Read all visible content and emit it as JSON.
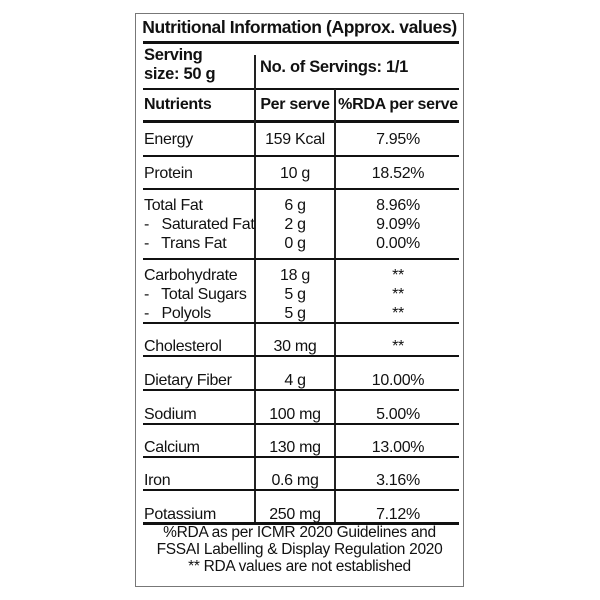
{
  "title": "Nutritional Information (Approx. values)",
  "serving_size": [
    "Serving",
    "size: 50 g"
  ],
  "servings": "No. of Servings: 1/1",
  "headers": [
    "Nutrients",
    "Per serve",
    "%RDA per serve"
  ],
  "rows": [
    {
      "name": "Energy",
      "per_serve": "159 Kcal",
      "rda": "7.95%"
    },
    {
      "name": "Protein",
      "per_serve": "10 g",
      "rda": "18.52%"
    },
    {
      "name": "Total Fat",
      "per_serve": "6 g",
      "rda": "8.96%"
    },
    {
      "name": "-   Saturated Fat",
      "per_serve": "2 g",
      "rda": "9.09%"
    },
    {
      "name": "-   Trans Fat",
      "per_serve": "0 g",
      "rda": "0.00%"
    },
    {
      "name": "Carbohydrate",
      "per_serve": "18 g",
      "rda": "**"
    },
    {
      "name": "-   Total Sugars",
      "per_serve": "5 g",
      "rda": "**"
    },
    {
      "name": "-   Polyols",
      "per_serve": "5 g",
      "rda": "**"
    },
    {
      "name": "Cholesterol",
      "per_serve": "30 mg",
      "rda": "**"
    },
    {
      "name": "Dietary Fiber",
      "per_serve": "4 g",
      "rda": "10.00%"
    },
    {
      "name": "Sodium",
      "per_serve": "100 mg",
      "rda": "5.00%"
    },
    {
      "name": "Calcium",
      "per_serve": "130 mg",
      "rda": "13.00%"
    },
    {
      "name": "Iron",
      "per_serve": "0.6 mg",
      "rda": "3.16%"
    },
    {
      "name": "Potassium",
      "per_serve": "250 mg",
      "rda": "7.12%"
    }
  ],
  "footer": [
    "%RDA as per ICMR 2020 Guidelines and",
    "FSSAI Labelling & Display Regulation 2020",
    "** RDA values are not established"
  ]
}
